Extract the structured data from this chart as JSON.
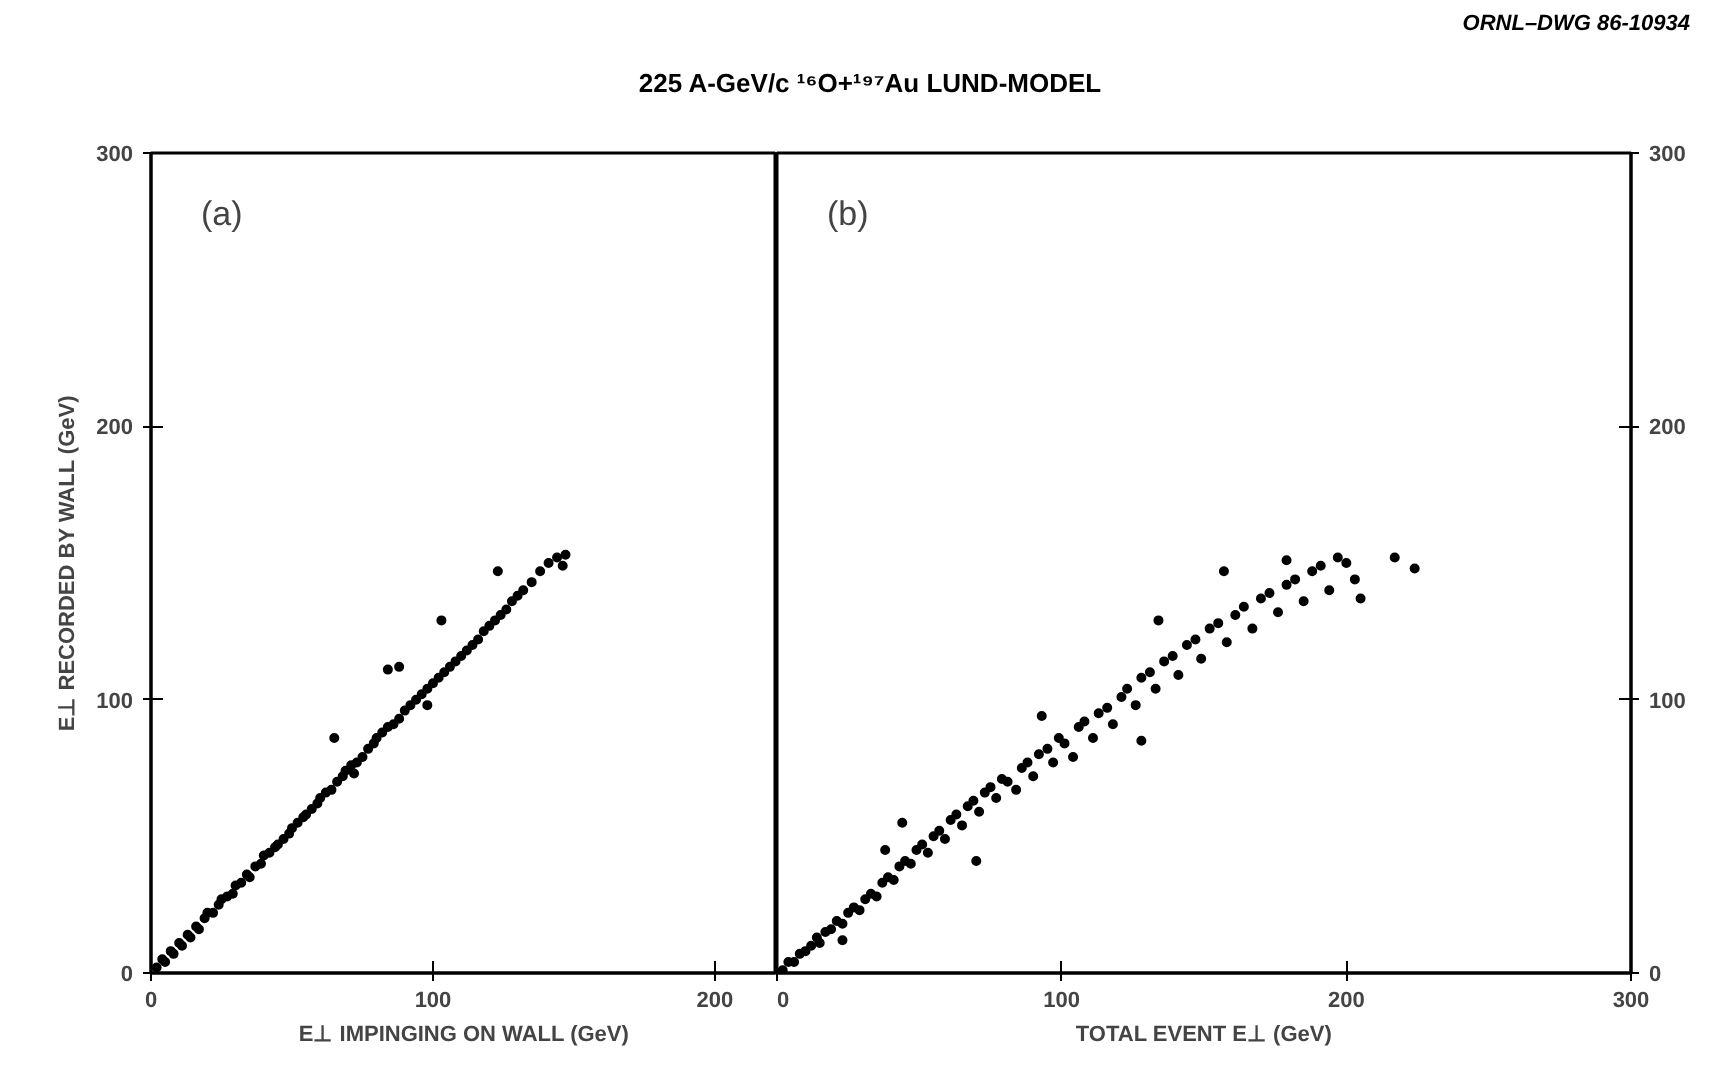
{
  "chart_data": [
    {
      "type": "scatter",
      "title": "225 A-GeV/c ¹⁶O+¹⁹⁷Au LUND-MODEL",
      "xlabel": "E⊥ IMPINGING ON WALL (GeV)",
      "ylabel": "E⊥ RECORDED BY WALL (GeV)",
      "annotations": [
        "(a)"
      ],
      "marker": "circle",
      "grid": false,
      "xlim": [
        0,
        222
      ],
      "xticks": [
        0,
        100,
        200
      ],
      "ylim": [
        0,
        300
      ],
      "yticks": [
        0,
        100,
        200,
        300
      ],
      "series": [
        {
          "color": "#000000",
          "x": [
            2,
            4,
            5,
            7,
            8,
            10,
            11,
            13,
            14,
            16,
            17,
            19,
            20,
            22,
            24,
            25,
            27,
            29,
            30,
            32,
            34,
            35,
            37,
            39,
            40,
            42,
            44,
            45,
            47,
            49,
            50,
            52,
            54,
            55,
            57,
            59,
            60,
            62,
            64,
            66,
            68,
            69,
            71,
            73,
            75,
            77,
            79,
            80,
            82,
            84,
            86,
            88,
            90,
            92,
            94,
            96,
            98,
            100,
            102,
            104,
            106,
            108,
            110,
            112,
            114,
            116,
            118,
            120,
            122,
            124,
            126,
            128,
            130,
            132,
            135,
            138,
            141,
            144,
            147,
            146,
            65,
            84,
            88,
            103,
            123,
            98,
            72
          ],
          "values": [
            2,
            5,
            4,
            8,
            7,
            11,
            10,
            14,
            13,
            17,
            16,
            20,
            22,
            22,
            25,
            27,
            28,
            29,
            32,
            33,
            36,
            35,
            39,
            40,
            43,
            44,
            46,
            47,
            49,
            51,
            53,
            55,
            57,
            58,
            60,
            62,
            64,
            66,
            67,
            70,
            72,
            74,
            76,
            77,
            79,
            82,
            84,
            86,
            88,
            90,
            91,
            93,
            96,
            98,
            100,
            102,
            104,
            106,
            108,
            110,
            112,
            114,
            116,
            118,
            120,
            122,
            125,
            127,
            129,
            131,
            133,
            136,
            138,
            140,
            143,
            147,
            150,
            152,
            153,
            149,
            86,
            111,
            112,
            129,
            147,
            98,
            73
          ]
        }
      ]
    },
    {
      "type": "scatter",
      "xlabel": "TOTAL EVENT E⊥ (GeV)",
      "annotations": [
        "(b)",
        "ORNL–DWG 86-10934"
      ],
      "marker": "circle",
      "grid": false,
      "xlim": [
        0,
        300
      ],
      "xticks": [
        0,
        100,
        200,
        300
      ],
      "ylim": [
        0,
        300
      ],
      "yticks": [
        0,
        100,
        200,
        300
      ],
      "series": [
        {
          "color": "#000000",
          "x": [
            2,
            4,
            6,
            8,
            10,
            12,
            14,
            15,
            17,
            19,
            21,
            23,
            25,
            27,
            29,
            31,
            33,
            35,
            37,
            39,
            41,
            43,
            45,
            47,
            49,
            51,
            53,
            55,
            57,
            59,
            61,
            63,
            65,
            67,
            69,
            71,
            73,
            75,
            77,
            79,
            81,
            84,
            86,
            88,
            90,
            92,
            95,
            97,
            99,
            101,
            104,
            106,
            108,
            111,
            113,
            116,
            118,
            121,
            123,
            126,
            128,
            131,
            133,
            136,
            139,
            141,
            144,
            147,
            149,
            152,
            155,
            158,
            161,
            164,
            167,
            170,
            173,
            176,
            179,
            182,
            185,
            188,
            191,
            194,
            197,
            200,
            203,
            217,
            224,
            205,
            157,
            179,
            134,
            38,
            44,
            70,
            23,
            128,
            93
          ],
          "values": [
            1,
            4,
            4,
            7,
            8,
            10,
            13,
            11,
            15,
            16,
            19,
            18,
            22,
            24,
            23,
            27,
            29,
            28,
            33,
            35,
            34,
            39,
            41,
            40,
            45,
            47,
            44,
            50,
            52,
            49,
            56,
            58,
            54,
            61,
            63,
            59,
            66,
            68,
            64,
            71,
            70,
            67,
            75,
            77,
            72,
            80,
            82,
            77,
            86,
            84,
            79,
            90,
            92,
            86,
            95,
            97,
            91,
            101,
            104,
            98,
            108,
            110,
            104,
            114,
            116,
            109,
            120,
            122,
            115,
            126,
            128,
            121,
            131,
            134,
            126,
            137,
            139,
            132,
            142,
            144,
            136,
            147,
            149,
            140,
            152,
            150,
            144,
            152,
            148,
            137,
            147,
            151,
            129,
            45,
            55,
            41,
            12,
            85,
            94
          ]
        }
      ]
    }
  ]
}
